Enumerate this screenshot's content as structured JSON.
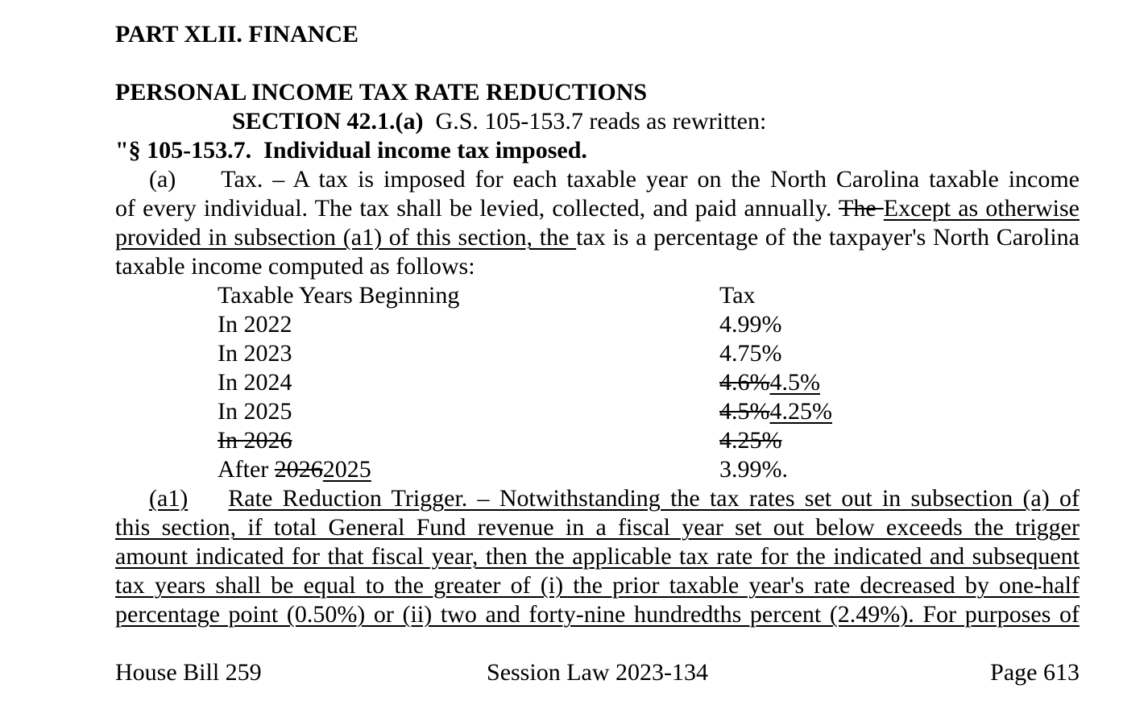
{
  "doc": {
    "lines_header": [
      {
        "name": "part-heading",
        "segs": [
          {
            "t": "PART XLII. FINANCE",
            "b": 1
          }
        ]
      },
      {
        "blank": 1
      },
      {
        "name": "doc-title",
        "segs": [
          {
            "t": "PERSONAL INCOME TAX RATE REDUCTIONS",
            "b": 1
          }
        ]
      },
      {
        "name": "section-intro",
        "indent": 145,
        "segs": [
          {
            "t": "SECTION 42.1.(a)",
            "b": 1
          },
          {
            "t": "  G.S. 105-153.7 reads as rewritten:"
          }
        ]
      },
      {
        "name": "statute-heading",
        "segs": [
          {
            "t": "\"§ 105-153.7.  Individual income tax imposed.",
            "b": 1
          }
        ]
      }
    ],
    "para_a": [
      {
        "justify": 1,
        "indent": 42,
        "segs": [
          {
            "t": "(a)"
          },
          {
            "tab": 56
          },
          {
            "t": "Tax. – A tax is imposed for each taxable year on the North Carolina taxable income"
          }
        ]
      },
      {
        "justify": 1,
        "segs": [
          {
            "t": "of every individual. The tax shall be levied, collected, and paid annually. "
          },
          {
            "t": "The ",
            "st": 1
          },
          {
            "t": "Except as otherwise",
            "u": 1
          }
        ]
      },
      {
        "justify": 1,
        "segs": [
          {
            "t": "provided in subsection (a1) of this section, the ",
            "u": 1
          },
          {
            "t": "tax is a percentage of the taxpayer's North Carolina"
          }
        ]
      },
      {
        "segs": [
          {
            "t": "taxable income computed as follows:"
          }
        ]
      }
    ],
    "tax_table": {
      "rows": [
        {
          "col1": [
            {
              "t": "Taxable Years Beginning"
            }
          ],
          "col2": [
            {
              "t": "Tax"
            }
          ]
        },
        {
          "col1": [
            {
              "t": "In 2022"
            }
          ],
          "col2": [
            {
              "t": "4.99%"
            }
          ]
        },
        {
          "col1": [
            {
              "t": "In 2023"
            }
          ],
          "col2": [
            {
              "t": "4.75%"
            }
          ]
        },
        {
          "col1": [
            {
              "t": "In 2024"
            }
          ],
          "col2": [
            {
              "t": "4.6%",
              "st": 1
            },
            {
              "t": "4.5%",
              "u": 1
            }
          ]
        },
        {
          "col1": [
            {
              "t": "In 2025"
            }
          ],
          "col2": [
            {
              "t": "4.5%",
              "st": 1
            },
            {
              "t": "4.25%",
              "u": 1
            }
          ]
        },
        {
          "col1": [
            {
              "t": "In 2026",
              "st": 1
            }
          ],
          "col2": [
            {
              "t": "4.25%",
              "st": 1
            }
          ]
        },
        {
          "col1": [
            {
              "t": "After "
            },
            {
              "t": "2026",
              "st": 1
            },
            {
              "t": "2025",
              "u": 1
            }
          ],
          "col2": [
            {
              "t": "3.99%."
            }
          ]
        }
      ]
    },
    "para_a1": [
      {
        "justify": 1,
        "indent": 42,
        "segs": [
          {
            "t": "(a1)",
            "u": 1
          },
          {
            "tab": 50
          },
          {
            "t": "Rate Reduction Trigger. – Notwithstanding the tax rates set out in subsection (a) of",
            "u": 1
          }
        ]
      },
      {
        "justify": 1,
        "segs": [
          {
            "t": "this section, if total General Fund revenue in a fiscal year set out below exceeds the trigger",
            "u": 1
          }
        ]
      },
      {
        "justify": 1,
        "segs": [
          {
            "t": "amount indicated for that fiscal year, then the applicable tax rate for the indicated and subsequent",
            "u": 1
          }
        ]
      },
      {
        "justify": 1,
        "segs": [
          {
            "t": "tax years shall be equal to the greater of (i) the prior taxable year's rate decreased by one-half",
            "u": 1
          }
        ]
      },
      {
        "justify": 1,
        "segs": [
          {
            "t": "percentage point (0.50%) or (ii) two and forty-nine hundredths percent (2.49%). For purposes of",
            "u": 1
          }
        ]
      }
    ],
    "footer": {
      "left": "House Bill 259",
      "center": "Session Law 2023-134",
      "right": "Page 613"
    }
  }
}
